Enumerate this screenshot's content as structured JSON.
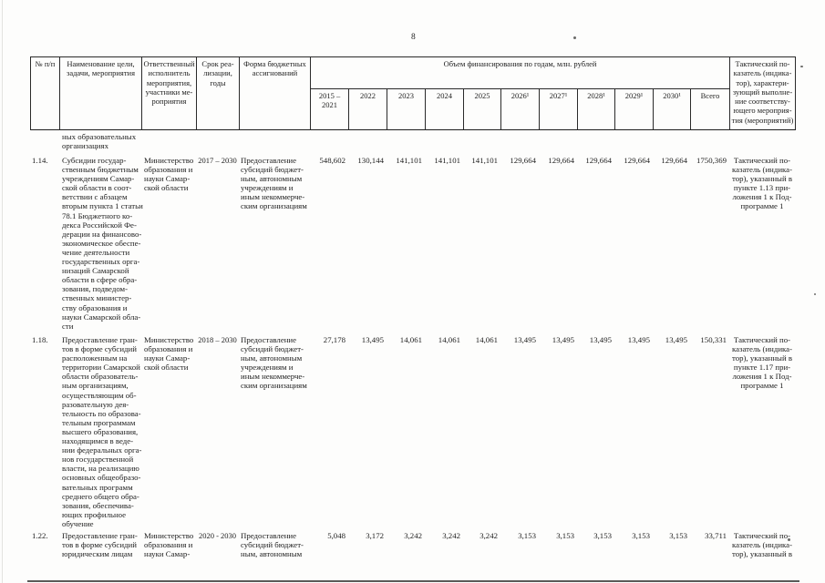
{
  "page": {
    "number": "8"
  },
  "table": {
    "headers": {
      "num": "№ п/п",
      "name": "Наименование цели,\nзадачи, мероприятия",
      "executor": "Ответственный\nисполнитель\nмероприятия,\nучастники ме-\nроприятия",
      "period": "Срок реа-\nлизации,\nгоды",
      "form": "Форма бюджетных\nассигнований",
      "financing": "Объем финансирования по годам, млн. рублей",
      "years": [
        "2015 –\n2021",
        "2022",
        "2023",
        "2024",
        "2025",
        "2026¹",
        "2027¹",
        "2028¹",
        "2029¹",
        "2030¹",
        "Всего"
      ],
      "indicator": "Тактический по-\nказатель (индика-\nтор), характери-\nзующий выполне-\nние соответству-\nющего мероприя-\nтия (мероприятий)"
    },
    "continuation": "ных образовательных\nорганизациях",
    "rows": [
      {
        "num": "1.14.",
        "name": "Субсидии государ-\nственным бюджетным\nучреждениям Самар-\nской области в соот-\nветствии с абзацем\nвторым пункта 1 статьи\n78.1 Бюджетного ко-\nдекса Российской Фе-\nдерации на финансово-\nэкономическое обеспе-\nчение деятельности\nгосударственных орга-\nнизаций Самарской\nобласти в сфере обра-\nзования, подведом-\nственных министер-\nству образования и\nнауки Самарской обла-\nсти",
        "executor": "Министерство\nобразования и\nнауки Самар-\nской области",
        "period": "2017 – 2030",
        "form": "Предоставление\nсубсидий бюджет-\nным, автономным\nучреждениям и\nиным некоммерче-\nским организациям",
        "values": [
          "548,602",
          "130,144",
          "141,101",
          "141,101",
          "141,101",
          "129,664",
          "129,664",
          "129,664",
          "129,664",
          "129,664",
          "1750,369"
        ],
        "indicator": "Тактический по-\nказатель (индика-\nтор), указанный в\nпункте 1.13 при-\nложения 1 к Под-\nпрограмме 1"
      },
      {
        "num": "1.18.",
        "name": "Предоставление гран-\nтов в форме субсидий\nрасположенным на\nтерритории Самарской\nобласти образователь-\nным организациям,\nосуществляющим об-\nразовательную дея-\nтельность по образова-\nтельным программам\nвысшего образования,\nнаходящимся в веде-\nнии федеральных орга-\nнов государственной\nвласти, на реализацию\nосновных общеобразо-\nвательных программ\nсреднего общего обра-\nзования, обеспечива-\nющих профильное\nобучение",
        "executor": "Министерство\nобразования и\nнауки Самар-\nской области",
        "period": "2018 – 2030",
        "form": "Предоставление\nсубсидий бюджет-\nным, автономным\nучреждениям и\nиным некоммерче-\nским организациям",
        "values": [
          "27,178",
          "13,495",
          "14,061",
          "14,061",
          "14,061",
          "13,495",
          "13,495",
          "13,495",
          "13,495",
          "13,495",
          "150,331"
        ],
        "indicator": "Тактический по-\nказатель (индика-\nтор), указанный в\nпункте 1.17 при-\nложения 1 к Под-\nпрограмме 1"
      },
      {
        "num": "1.22.",
        "name": "Предоставление гран-\nтов в форме субсидий\nюридическим лицам",
        "executor": "Министерство\nобразования и\nнауки Самар-",
        "period": "2020 - 2030",
        "form": "Предоставление\nсубсидий бюджет-\nным, автономным",
        "values": [
          "5,048",
          "3,172",
          "3,242",
          "3,242",
          "3,242",
          "3,153",
          "3,153",
          "3,153",
          "3,153",
          "3,153",
          "33,711"
        ],
        "indicator": "Тактический по-\nказатель (индика-\nтор), указанный в"
      }
    ]
  }
}
